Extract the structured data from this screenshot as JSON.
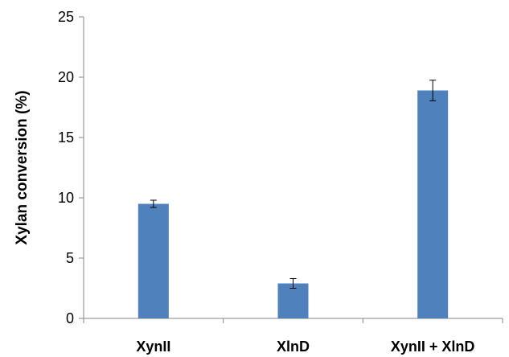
{
  "chart_data": {
    "type": "bar",
    "title": "",
    "xlabel": "",
    "ylabel": "Xylan conversion (%)",
    "categories": [
      "XynII",
      "XlnD",
      "XynII + XlnD"
    ],
    "values": [
      9.5,
      2.9,
      18.9
    ],
    "error": [
      0.3,
      0.4,
      0.85
    ],
    "ylim": [
      0,
      25
    ],
    "yticks": [
      0,
      5,
      10,
      15,
      20,
      25
    ],
    "grid": false,
    "legend": "none",
    "bar_color": "#4f81bd",
    "axis_color": "#868686"
  }
}
